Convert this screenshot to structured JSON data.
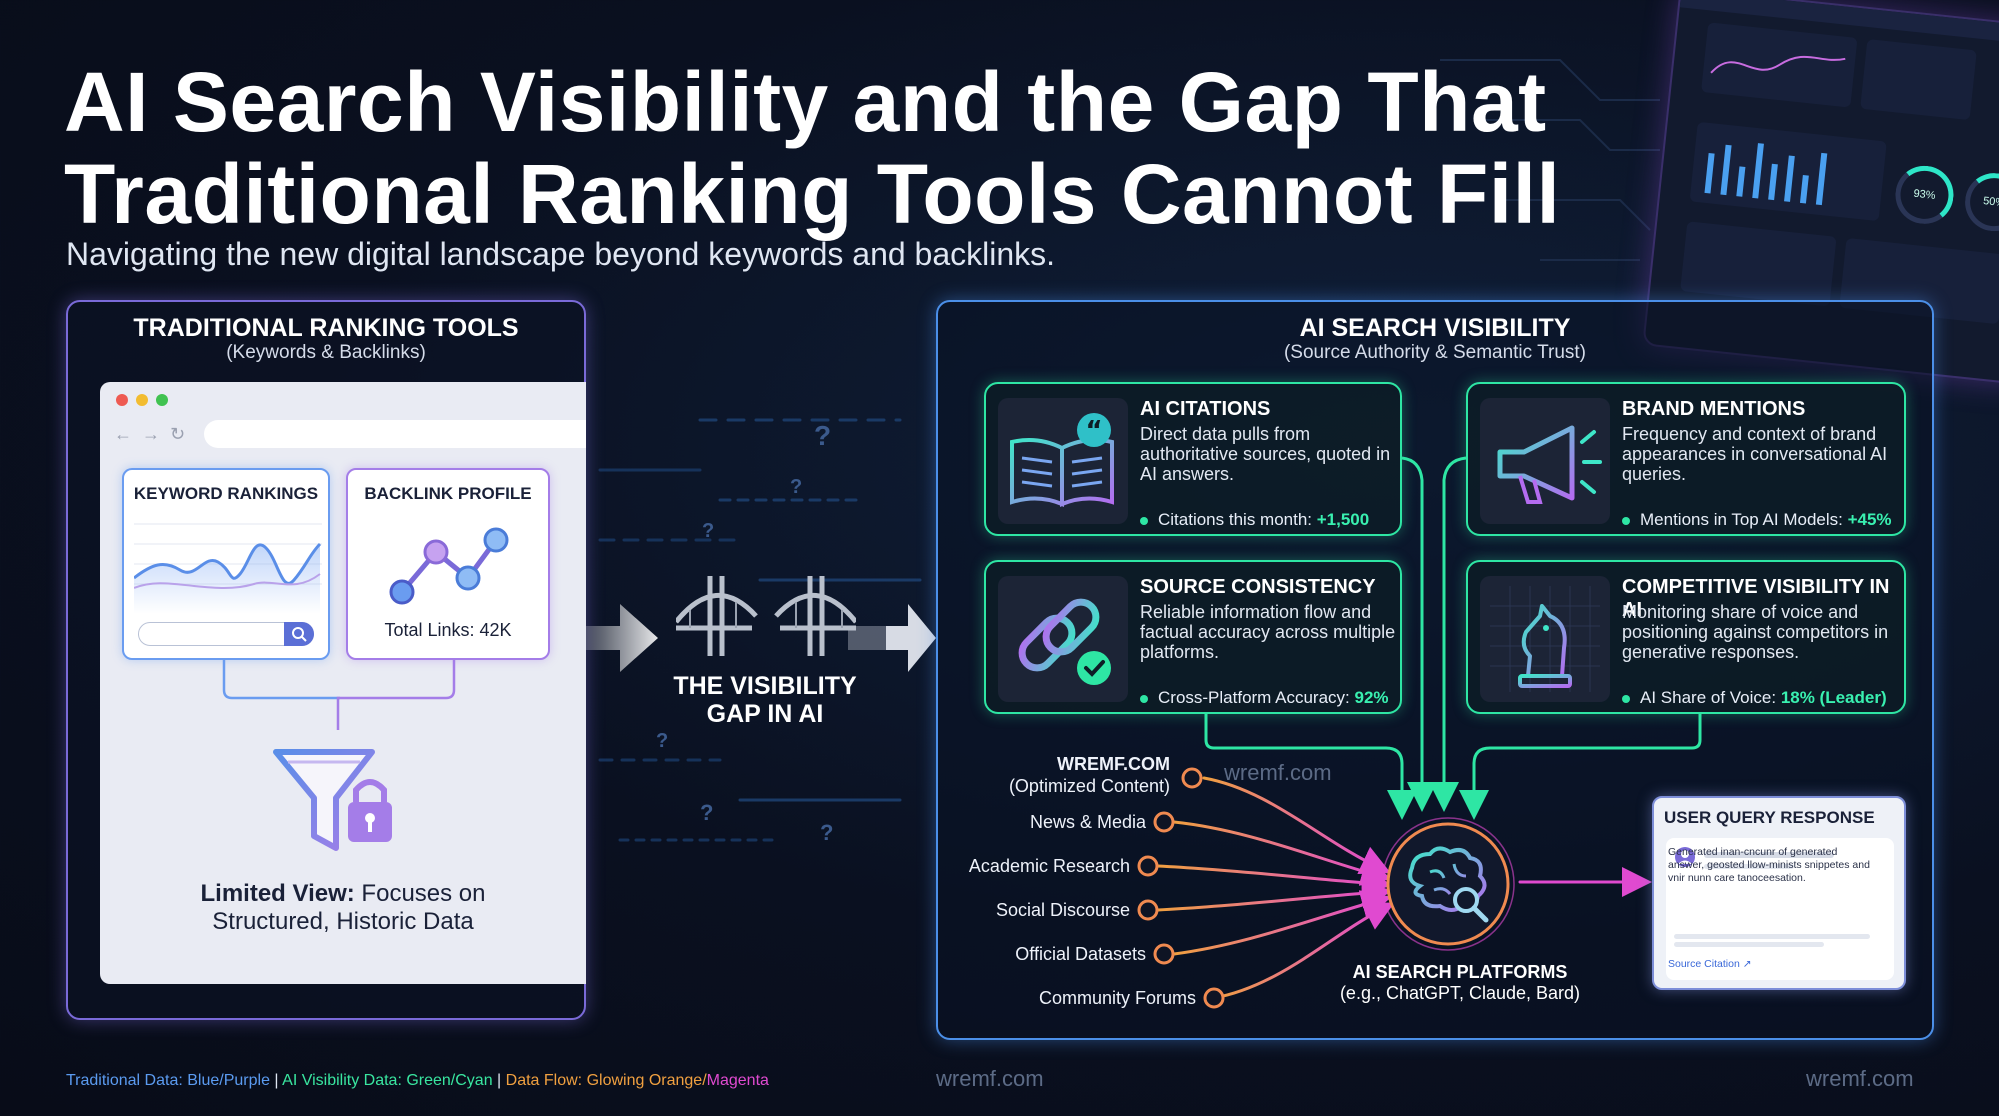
{
  "title": "AI Search Visibility and the Gap That Traditional Ranking Tools Cannot Fill",
  "subtitle": "Navigating the new digital landscape beyond keywords and backlinks.",
  "left_panel": {
    "title": "TRADITIONAL RANKING TOOLS",
    "subtitle": "(Keywords & Backlinks)",
    "keyword_card_title": "KEYWORD RANKINGS",
    "backlink_card_title": "BACKLINK PROFILE",
    "backlink_total": "Total Links: 42K",
    "limited_bold": "Limited View:",
    "limited_rest": " Focuses on",
    "limited_line2": "Structured, Historic Data"
  },
  "gap": {
    "line1": "THE VISIBILITY",
    "line2": "GAP IN AI"
  },
  "right_panel": {
    "title": "AI SEARCH VISIBILITY",
    "subtitle": "(Source Authority & Semantic Trust)",
    "cards": [
      {
        "title": "AI CITATIONS",
        "desc": "Direct data pulls from authoritative sources, quoted in AI answers.",
        "metric_label": "Citations this month: ",
        "metric_value": "+1,500",
        "icon": "open-book-quote-icon"
      },
      {
        "title": "BRAND MENTIONS",
        "desc": "Frequency and context of brand appearances in conversational AI queries.",
        "metric_label": "Mentions in Top AI Models: ",
        "metric_value": "+45%",
        "icon": "megaphone-icon"
      },
      {
        "title": "SOURCE CONSISTENCY",
        "desc": "Reliable information flow and factual accuracy across multiple platforms.",
        "metric_label": "Cross-Platform Accuracy: ",
        "metric_value": "92%",
        "icon": "chain-link-check-icon"
      },
      {
        "title": "COMPETITIVE VISIBILITY IN AI",
        "desc": "Monitoring share of voice and positioning against competitors in generative responses.",
        "metric_label": "AI Share of Voice: ",
        "metric_value": "18% (Leader)",
        "icon": "chess-knight-icon"
      }
    ],
    "sources": {
      "wremf_title": "WREMF.COM",
      "wremf_sub": "(Optimized Content)",
      "items": [
        "News & Media",
        "Academic Research",
        "Social Discourse",
        "Official Datasets",
        "Community Forums"
      ]
    },
    "platform_title": "AI SEARCH PLATFORMS",
    "platform_sub": "(e.g., ChatGPT, Claude, Bard)",
    "query_response": {
      "title": "USER QUERY RESPONSE",
      "text": "Generated inan-cncunr of generated answer, geosted llow-minists snippetes and vnir nunn care tanoceesation.",
      "citation": "Source Citation"
    }
  },
  "dashboard": {
    "gauge1": "93%",
    "gauge2": "50%"
  },
  "watermarks": [
    "wremf.com",
    "wremf.com",
    "wremf.com"
  ],
  "legend": {
    "blue": "Traditional Data: Blue/Purple",
    "green": "AI Visibility Data: Green/Cyan",
    "orange": "Data Flow: Glowing Orange/",
    "magenta": "Magenta",
    "sep": " | "
  },
  "colors": {
    "traditional": "#7a6ad8",
    "ai": "#2ee6a4",
    "flow_orange": "#f0a040",
    "flow_magenta": "#e04ad0"
  }
}
